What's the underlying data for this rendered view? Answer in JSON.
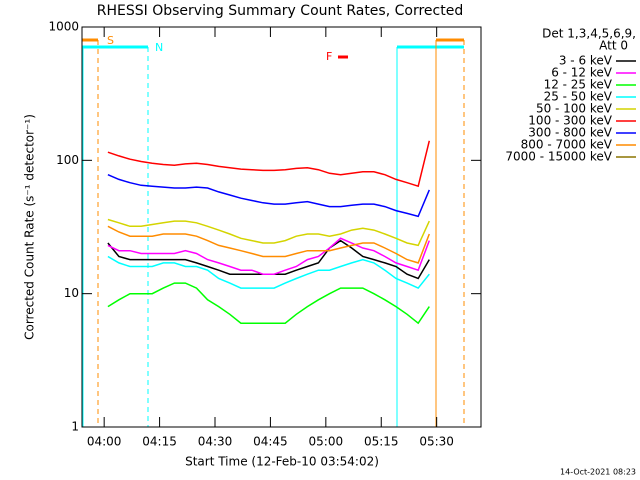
{
  "chart_data": {
    "type": "line",
    "title": "RHESSI Observing Summary Count Rates, Corrected",
    "x_label": "Start Time (12-Feb-10 03:54:02)",
    "y_label": "Corrected Count Rate (s⁻¹ detector⁻¹)",
    "legend_header": [
      "Det 1,3,4,5,6,9,",
      "Att 0"
    ],
    "footer": "14-Oct-2021 08:23",
    "annotations": [
      "S",
      "N",
      "F"
    ],
    "log_y": true,
    "xlim": [
      -6,
      102
    ],
    "xticks": [
      {
        "value": 0,
        "label": "04:00"
      },
      {
        "value": 15,
        "label": "04:15"
      },
      {
        "value": 30,
        "label": "04:30"
      },
      {
        "value": 45,
        "label": "04:45"
      },
      {
        "value": 60,
        "label": "05:00"
      },
      {
        "value": 75,
        "label": "05:15"
      },
      {
        "value": 90,
        "label": "05:30"
      }
    ],
    "ylim": [
      1,
      1000
    ],
    "yticks": [
      1,
      10,
      100,
      1000
    ],
    "x": [
      1,
      4,
      7,
      10,
      13,
      16,
      19,
      22,
      25,
      28,
      31,
      34,
      37,
      40,
      43,
      46,
      49,
      52,
      55,
      58,
      61,
      64,
      67,
      70,
      73,
      76,
      79,
      82,
      85,
      88
    ],
    "series": [
      {
        "name": "3 - 6 keV",
        "color": "#000000",
        "values": [
          24,
          19,
          18,
          18,
          18,
          18,
          18,
          18,
          17,
          16,
          15,
          14,
          14,
          14,
          14,
          14,
          14,
          15,
          16,
          17,
          22,
          25,
          22,
          19,
          18,
          17,
          16,
          14,
          13,
          18
        ]
      },
      {
        "name": "6 - 12 keV",
        "color": "#ff00ff",
        "values": [
          23,
          21,
          21,
          20,
          20,
          20,
          20,
          21,
          20,
          18,
          17,
          16,
          15,
          15,
          14,
          14,
          15,
          16,
          18,
          19,
          22,
          26,
          24,
          22,
          21,
          19,
          17,
          16,
          15,
          25
        ]
      },
      {
        "name": "12 - 25 keV",
        "color": "#00ff00",
        "values": [
          8,
          9,
          10,
          10,
          10,
          11,
          12,
          12,
          11,
          9,
          8,
          7,
          6,
          6,
          6,
          6,
          6,
          7,
          8,
          9,
          10,
          11,
          11,
          11,
          10,
          9,
          8,
          7,
          6,
          8
        ]
      },
      {
        "name": "25 - 50 keV",
        "color": "#00ffff",
        "values": [
          19,
          17,
          16,
          16,
          16,
          17,
          17,
          16,
          16,
          15,
          13,
          12,
          11,
          11,
          11,
          11,
          12,
          13,
          14,
          15,
          15,
          16,
          17,
          18,
          17,
          15,
          13,
          12,
          11,
          14
        ]
      },
      {
        "name": "50 - 100 keV",
        "color": "#d4d400",
        "values": [
          36,
          34,
          32,
          32,
          33,
          34,
          35,
          35,
          34,
          32,
          30,
          28,
          26,
          25,
          24,
          24,
          25,
          27,
          28,
          28,
          27,
          28,
          30,
          31,
          30,
          28,
          26,
          24,
          23,
          35
        ]
      },
      {
        "name": "100 - 300 keV",
        "color": "#ff0000",
        "values": [
          115,
          108,
          102,
          98,
          95,
          93,
          92,
          94,
          95,
          93,
          90,
          88,
          86,
          85,
          84,
          84,
          85,
          87,
          88,
          85,
          80,
          78,
          80,
          82,
          82,
          78,
          72,
          68,
          64,
          140
        ]
      },
      {
        "name": "300 - 800 keV",
        "color": "#0000ff",
        "values": [
          78,
          72,
          68,
          65,
          64,
          63,
          62,
          62,
          63,
          62,
          58,
          55,
          52,
          50,
          48,
          47,
          47,
          48,
          49,
          47,
          45,
          45,
          46,
          47,
          47,
          45,
          42,
          40,
          38,
          60
        ]
      },
      {
        "name": "800 - 7000 keV",
        "color": "#ff8c00",
        "values": [
          32,
          29,
          27,
          27,
          27,
          28,
          28,
          28,
          27,
          25,
          23,
          22,
          21,
          20,
          19,
          19,
          19,
          20,
          21,
          21,
          21,
          22,
          23,
          24,
          24,
          22,
          20,
          18,
          17,
          28
        ]
      },
      {
        "name": "7000 - 15000 keV",
        "color": "#8b7500",
        "values": [
          null,
          null,
          null,
          null,
          null,
          null,
          null,
          null,
          null,
          null,
          null,
          null,
          null,
          null,
          null,
          null,
          null,
          null,
          null,
          null,
          null,
          null,
          null,
          null,
          null,
          null,
          null,
          null,
          null,
          null
        ]
      }
    ]
  }
}
